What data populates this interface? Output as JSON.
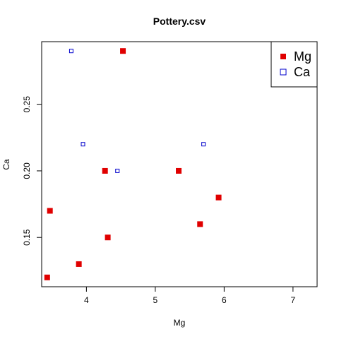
{
  "chart_data": {
    "type": "scatter",
    "title": "Pottery.csv",
    "xlabel": "Mg",
    "ylabel": "Ca",
    "xlim": [
      3.35,
      7.35
    ],
    "ylim": [
      0.113,
      0.297
    ],
    "x_ticks": [
      4,
      5,
      6,
      7
    ],
    "y_ticks": [
      0.15,
      0.2,
      0.25
    ],
    "y_tick_labels": [
      "0.15",
      "0.20",
      "0.25"
    ],
    "grid": false,
    "legend_position": "top-right",
    "series": [
      {
        "name": "Mg",
        "marker": "filled-square",
        "color": "#e00000",
        "points": [
          {
            "x": 4.53,
            "y": 0.29
          },
          {
            "x": 4.27,
            "y": 0.2
          },
          {
            "x": 5.34,
            "y": 0.2
          },
          {
            "x": 5.92,
            "y": 0.18
          },
          {
            "x": 3.47,
            "y": 0.17
          },
          {
            "x": 5.65,
            "y": 0.16
          },
          {
            "x": 4.31,
            "y": 0.15
          },
          {
            "x": 3.89,
            "y": 0.13
          },
          {
            "x": 3.43,
            "y": 0.12
          }
        ]
      },
      {
        "name": "Ca",
        "marker": "open-square",
        "color": "#0000cc",
        "points": [
          {
            "x": 3.78,
            "y": 0.29
          },
          {
            "x": 3.95,
            "y": 0.22
          },
          {
            "x": 5.7,
            "y": 0.22
          },
          {
            "x": 4.45,
            "y": 0.2
          }
        ]
      }
    ]
  }
}
